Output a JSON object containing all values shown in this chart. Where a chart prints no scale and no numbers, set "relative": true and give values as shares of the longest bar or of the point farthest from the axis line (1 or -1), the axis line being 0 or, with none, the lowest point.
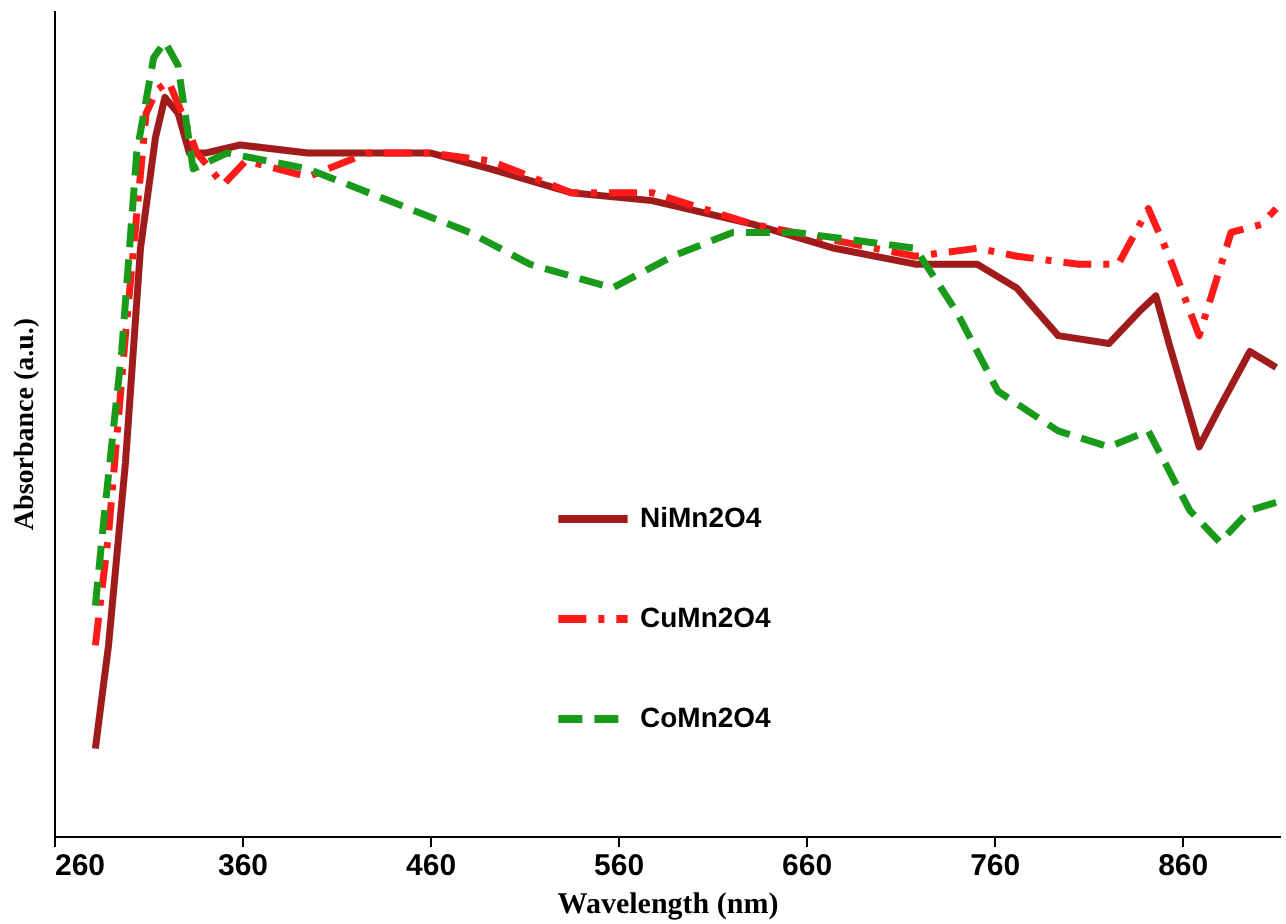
{
  "chart_data": {
    "type": "line",
    "xlabel": "Wavelength (nm)",
    "ylabel": "Absorbance (a.u.)",
    "relative": true,
    "xlim": [
      260,
      912
    ],
    "xticks": [
      260,
      360,
      460,
      560,
      660,
      760,
      860
    ],
    "grid": false,
    "legend": "bottom",
    "tick_labels": "x",
    "series": [
      {
        "name": "NiMn2O4",
        "color": "#a01c1c",
        "line_style": "solid",
        "x": [
          282,
          289,
          298,
          306,
          314,
          319,
          326,
          332,
          341,
          359,
          395,
          427,
          460,
          492,
          535,
          578,
          632,
          675,
          718,
          751,
          772,
          794,
          821,
          837,
          846,
          853,
          869,
          880,
          896,
          910
        ],
        "values": [
          0.11,
          0.24,
          0.47,
          0.74,
          0.88,
          0.93,
          0.91,
          0.86,
          0.86,
          0.87,
          0.86,
          0.86,
          0.86,
          0.84,
          0.81,
          0.8,
          0.77,
          0.74,
          0.72,
          0.72,
          0.69,
          0.63,
          0.62,
          0.66,
          0.68,
          0.62,
          0.49,
          0.54,
          0.61,
          0.59
        ]
      },
      {
        "name": "CuMn2O4",
        "color": "#ff1a1a",
        "line_style": "dashdot",
        "x": [
          282,
          289,
          298,
          309,
          315,
          321,
          328,
          336,
          350,
          362,
          395,
          427,
          460,
          492,
          535,
          578,
          632,
          675,
          718,
          751,
          772,
          805,
          826,
          842,
          853,
          869,
          886,
          902,
          910
        ],
        "values": [
          0.24,
          0.38,
          0.63,
          0.91,
          0.94,
          0.95,
          0.91,
          0.86,
          0.82,
          0.85,
          0.83,
          0.86,
          0.86,
          0.85,
          0.81,
          0.81,
          0.77,
          0.75,
          0.73,
          0.74,
          0.73,
          0.72,
          0.72,
          0.79,
          0.73,
          0.63,
          0.76,
          0.77,
          0.79
        ]
      },
      {
        "name": "CoMn2O4",
        "color": "#1a9a1a",
        "line_style": "dashed",
        "x": [
          282,
          287,
          296,
          304,
          313,
          319,
          326,
          334,
          352,
          395,
          438,
          481,
          513,
          557,
          589,
          621,
          654,
          686,
          718,
          740,
          762,
          794,
          821,
          842,
          864,
          880,
          896,
          910
        ],
        "values": [
          0.29,
          0.41,
          0.61,
          0.86,
          0.98,
          1.0,
          0.97,
          0.84,
          0.86,
          0.84,
          0.8,
          0.76,
          0.72,
          0.69,
          0.73,
          0.76,
          0.76,
          0.75,
          0.74,
          0.66,
          0.56,
          0.51,
          0.49,
          0.51,
          0.41,
          0.37,
          0.41,
          0.42
        ]
      }
    ]
  }
}
